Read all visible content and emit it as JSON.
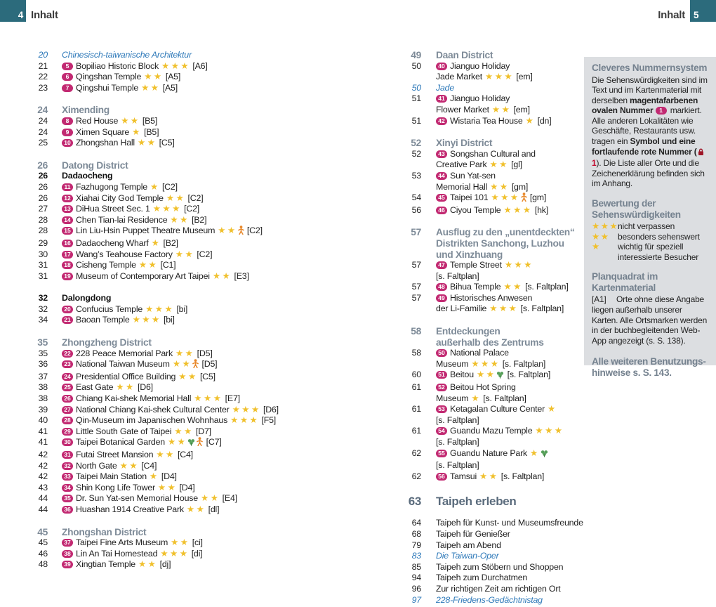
{
  "page": {
    "header_left": {
      "num": "4",
      "label": "Inhalt"
    },
    "header_right": {
      "num": "5",
      "label": "Inhalt"
    }
  },
  "accent_colors": {
    "teal": "#2c6b7c",
    "magenta_badge": "#c22a72",
    "star_gold": "#f0c02c",
    "feature_blue": "#2e79b9",
    "section_gray": "#7e8b98",
    "chapter_slate": "#5a6b7c",
    "sidebar_bg": "#dcdee1",
    "red_symbol": "#9e1628"
  },
  "toc_left": [
    {
      "type": "feature",
      "num": "20",
      "title": "Chinesisch-taiwanische Architektur"
    },
    {
      "type": "entry",
      "num": "21",
      "badge": "5",
      "title": "Bopiliao Historic Block",
      "stars": 3,
      "ref": "[A6]"
    },
    {
      "type": "entry",
      "num": "22",
      "badge": "6",
      "title": "Qingshan Temple",
      "stars": 2,
      "ref": "[A5]"
    },
    {
      "type": "entry",
      "num": "23",
      "badge": "7",
      "title": "Qingshui Temple",
      "stars": 2,
      "ref": "[A5]"
    },
    {
      "type": "section",
      "num": "24",
      "title": "Ximending",
      "gap": true
    },
    {
      "type": "entry",
      "num": "24",
      "badge": "8",
      "title": "Red House",
      "stars": 2,
      "ref": "[B5]"
    },
    {
      "type": "entry",
      "num": "24",
      "badge": "9",
      "title": "Ximen Square",
      "stars": 1,
      "ref": "[B5]"
    },
    {
      "type": "entry",
      "num": "25",
      "badge": "10",
      "title": "Zhongshan Hall",
      "stars": 2,
      "ref": "[C5]"
    },
    {
      "type": "section",
      "num": "26",
      "title": "Datong District",
      "gap": true
    },
    {
      "type": "subsection",
      "num": "26",
      "title": "Dadaocheng"
    },
    {
      "type": "entry",
      "num": "26",
      "badge": "11",
      "title": "Fazhugong Temple",
      "stars": 1,
      "ref": "[C2]"
    },
    {
      "type": "entry",
      "num": "26",
      "badge": "12",
      "title": "Xiahai City God Temple",
      "stars": 2,
      "ref": "[C2]"
    },
    {
      "type": "entry",
      "num": "27",
      "badge": "13",
      "title": "DiHua Street Sec. 1",
      "stars": 3,
      "ref": "[C2]"
    },
    {
      "type": "entry",
      "num": "28",
      "badge": "14",
      "title": "Chen Tian-lai Residence",
      "stars": 2,
      "ref": "[B2]"
    },
    {
      "type": "entry",
      "num": "28",
      "badge": "15",
      "title": "Lin Liu-Hsin Puppet Theatre Museum",
      "stars": 2,
      "icons": [
        "kid"
      ],
      "ref": "[C2]"
    },
    {
      "type": "entry",
      "num": "29",
      "badge": "16",
      "title": "Dadaocheng Wharf",
      "stars": 1,
      "ref": "[B2]"
    },
    {
      "type": "entry",
      "num": "30",
      "badge": "17",
      "title": "Wang’s Teahouse Factory",
      "stars": 2,
      "ref": "[C2]"
    },
    {
      "type": "entry",
      "num": "31",
      "badge": "18",
      "title": "Cisheng Temple",
      "stars": 2,
      "ref": "[C1]"
    },
    {
      "type": "entry",
      "num": "31",
      "badge": "19",
      "title": "Museum of Contemporary Art Taipei",
      "stars": 2,
      "ref": "[E3]"
    },
    {
      "type": "subsection",
      "num": "32",
      "title": "Dalongdong",
      "gap": true
    },
    {
      "type": "entry",
      "num": "32",
      "badge": "20",
      "title": "Confucius Temple",
      "stars": 3,
      "ref": "[bi]"
    },
    {
      "type": "entry",
      "num": "34",
      "badge": "21",
      "title": "Baoan Temple",
      "stars": 3,
      "ref": "[bi]"
    },
    {
      "type": "section",
      "num": "35",
      "title": "Zhongzheng District",
      "gap": true
    },
    {
      "type": "entry",
      "num": "35",
      "badge": "22",
      "title": "228 Peace Memorial Park",
      "stars": 2,
      "ref": "[D5]"
    },
    {
      "type": "entry",
      "num": "36",
      "badge": "23",
      "title": "National Taiwan Museum",
      "stars": 2,
      "icons": [
        "kid"
      ],
      "ref": "[D5]"
    },
    {
      "type": "entry",
      "num": "37",
      "badge": "24",
      "title": "Presidential Office Building",
      "stars": 2,
      "ref": "[C5]"
    },
    {
      "type": "entry",
      "num": "38",
      "badge": "25",
      "title": "East Gate",
      "stars": 2,
      "ref": "[D6]"
    },
    {
      "type": "entry",
      "num": "38",
      "badge": "26",
      "title": "Chiang Kai-shek Memorial Hall",
      "stars": 3,
      "ref": "[E7]"
    },
    {
      "type": "entry",
      "num": "39",
      "badge": "27",
      "title": "National Chiang Kai-shek Cultural Center",
      "stars": 3,
      "ref": "[D6]"
    },
    {
      "type": "entry",
      "num": "40",
      "badge": "28",
      "title": "Qin-Museum im Japanischen Wohnhaus",
      "stars": 3,
      "ref": "[F5]"
    },
    {
      "type": "entry",
      "num": "41",
      "badge": "29",
      "title": "Little South Gate of Taipei",
      "stars": 2,
      "ref": "[D7]"
    },
    {
      "type": "entry",
      "num": "41",
      "badge": "30",
      "title": "Taipei Botanical Garden",
      "stars": 2,
      "icons": [
        "nature",
        "kid"
      ],
      "ref": "[C7]"
    },
    {
      "type": "entry",
      "num": "42",
      "badge": "31",
      "title": "Futai Street Mansion",
      "stars": 2,
      "ref": "[C4]"
    },
    {
      "type": "entry",
      "num": "42",
      "badge": "32",
      "title": "North Gate",
      "stars": 2,
      "ref": "[C4]"
    },
    {
      "type": "entry",
      "num": "42",
      "badge": "33",
      "title": "Taipei Main Station",
      "stars": 1,
      "ref": "[D4]"
    },
    {
      "type": "entry",
      "num": "43",
      "badge": "34",
      "title": "Shin Kong Life Tower",
      "stars": 2,
      "ref": "[D4]"
    },
    {
      "type": "entry",
      "num": "44",
      "badge": "35",
      "title": "Dr. Sun Yat-sen Memorial House",
      "stars": 2,
      "ref": "[E4]"
    },
    {
      "type": "entry",
      "num": "44",
      "badge": "36",
      "title": "Huashan 1914 Creative Park",
      "stars": 2,
      "ref": "[dl]"
    },
    {
      "type": "section",
      "num": "45",
      "title": "Zhongshan District",
      "gap": true
    },
    {
      "type": "entry",
      "num": "45",
      "badge": "37",
      "title": "Taipei Fine Arts Museum",
      "stars": 2,
      "ref": "[ci]"
    },
    {
      "type": "entry",
      "num": "46",
      "badge": "38",
      "title": "Lin An Tai Homestead",
      "stars": 3,
      "ref": "[di]"
    },
    {
      "type": "entry",
      "num": "48",
      "badge": "39",
      "title": "Xingtian Temple",
      "stars": 2,
      "ref": "[dj]"
    }
  ],
  "toc_right": [
    {
      "type": "section",
      "num": "49",
      "title": "Daan District"
    },
    {
      "type": "entry",
      "num": "50",
      "badge": "40",
      "title": "Jianguo Holiday\nJade Market",
      "stars": 3,
      "ref": "[em]"
    },
    {
      "type": "feature",
      "num": "50",
      "title": "Jade"
    },
    {
      "type": "entry",
      "num": "51",
      "badge": "41",
      "title": "Jianguo Holiday\nFlower Market",
      "stars": 2,
      "ref": "[em]"
    },
    {
      "type": "entry",
      "num": "51",
      "badge": "42",
      "title": "Wistaria Tea House",
      "stars": 1,
      "ref": "[dn]"
    },
    {
      "type": "section",
      "num": "52",
      "title": "Xinyi District",
      "gap": true
    },
    {
      "type": "entry",
      "num": "52",
      "badge": "43",
      "title": "Songshan Cultural and\nCreative Park",
      "stars": 2,
      "ref": "[gl]"
    },
    {
      "type": "entry",
      "num": "53",
      "badge": "44",
      "title": "Sun Yat-sen\nMemorial Hall",
      "stars": 2,
      "ref": "[gm]"
    },
    {
      "type": "entry",
      "num": "54",
      "badge": "45",
      "title": "Taipei 101",
      "stars": 3,
      "icons": [
        "kid"
      ],
      "ref": "[gm]"
    },
    {
      "type": "entry",
      "num": "56",
      "badge": "46",
      "title": "Ciyou Temple",
      "stars": 3,
      "ref": "[hk]"
    },
    {
      "type": "section",
      "num": "57",
      "title": "Ausflug zu den „unentdeckten“\nDistrikten Sanchong, Luzhou\nund Xinzhuang",
      "gap": true
    },
    {
      "type": "entry",
      "num": "57",
      "badge": "47",
      "title": "Temple Street",
      "stars": 3,
      "ref": "[s. Faltplan]",
      "ref_newline": true
    },
    {
      "type": "entry",
      "num": "57",
      "badge": "48",
      "title": "Bihua Temple",
      "stars": 2,
      "ref": "[s. Faltplan]"
    },
    {
      "type": "entry",
      "num": "57",
      "badge": "49",
      "title": "Historisches Anwesen\nder Li-Familie",
      "stars": 3,
      "ref": "[s. Faltplan]"
    },
    {
      "type": "section",
      "num": "58",
      "title": "Entdeckungen\naußerhalb des Zentrums",
      "gap": true
    },
    {
      "type": "entry",
      "num": "58",
      "badge": "50",
      "title": "National Palace\nMuseum",
      "stars": 3,
      "ref": "[s. Faltplan]"
    },
    {
      "type": "entry",
      "num": "60",
      "badge": "51",
      "title": "Beitou",
      "stars": 2,
      "icons": [
        "nature"
      ],
      "ref": "[s. Faltplan]"
    },
    {
      "type": "entry",
      "num": "61",
      "badge": "52",
      "title": "Beitou Hot Spring\nMuseum",
      "stars": 1,
      "ref": "[s. Faltplan]"
    },
    {
      "type": "entry",
      "num": "61",
      "badge": "53",
      "title": "Ketagalan Culture Center",
      "stars": 1,
      "ref": "[s. Faltplan]"
    },
    {
      "type": "entry",
      "num": "61",
      "badge": "54",
      "title": "Guandu Mazu Temple",
      "stars": 3,
      "ref": "[s. Faltplan]"
    },
    {
      "type": "entry",
      "num": "62",
      "badge": "55",
      "title": "Guandu Nature Park",
      "stars": 1,
      "icons": [
        "nature"
      ],
      "ref": "[s. Faltplan]"
    },
    {
      "type": "entry",
      "num": "62",
      "badge": "56",
      "title": "Tamsui",
      "stars": 2,
      "ref": "[s. Faltplan]"
    },
    {
      "type": "chapter",
      "num": "63",
      "title": "Taipeh erleben",
      "gap": true
    },
    {
      "type": "plain",
      "num": "64",
      "title": "Taipeh für Kunst- und Museumsfreunde"
    },
    {
      "type": "plain",
      "num": "68",
      "title": "Taipeh für Genießer"
    },
    {
      "type": "plain",
      "num": "79",
      "title": "Taipeh am Abend"
    },
    {
      "type": "feature",
      "num": "83",
      "title": "Die Taiwan-Oper"
    },
    {
      "type": "plain",
      "num": "85",
      "title": "Taipeh zum Stöbern und Shoppen"
    },
    {
      "type": "plain",
      "num": "94",
      "title": "Taipeh zum Durchatmen"
    },
    {
      "type": "plain",
      "num": "96",
      "title": "Zur richtigen Zeit am richtigen Ort"
    },
    {
      "type": "feature",
      "num": "97",
      "title": "228-Friedens-Gedächtnistag"
    }
  ],
  "legend": {
    "numbering": {
      "title": "Cleveres Nummernsystem",
      "t1": "Die Sehenswürdigkeiten sind im Text und im Kartenmaterial mit derselben ",
      "b1": "magentafarbenen ovalen Nummer",
      "badge": "1",
      "t2": " markiert. Alle anderen Lokalitäten wie Geschäfte, Restaurants usw. tragen ein ",
      "b2": "Symbol und eine fortlaufende rote Nummer",
      "t3": " (",
      "red_num": "1",
      "t4": "). Die Liste aller Orte und die Zeichenerklärung befinden sich im Anhang."
    },
    "ratings": {
      "title": "Bewertung der\nSehenswürdigkeiten",
      "rows": [
        {
          "stars": "★★★",
          "label": "nicht verpassen"
        },
        {
          "stars": "★★",
          "label": "besonders sehenswert"
        },
        {
          "stars": "★",
          "label": "wichtig für speziell\ninteressierte Besucher"
        }
      ]
    },
    "grid": {
      "title": "Planquadrat im Kartenmaterial",
      "code": "[A1]",
      "text": "Orte ohne diese Angabe liegen außerhalb unserer Karten. Alle Ortsmarken werden in der buchbegleitenden Web-App angezeigt (s. S. 138)."
    },
    "footer": "Alle weiteren Benutzungs-\nhinweise s. S. 143."
  }
}
